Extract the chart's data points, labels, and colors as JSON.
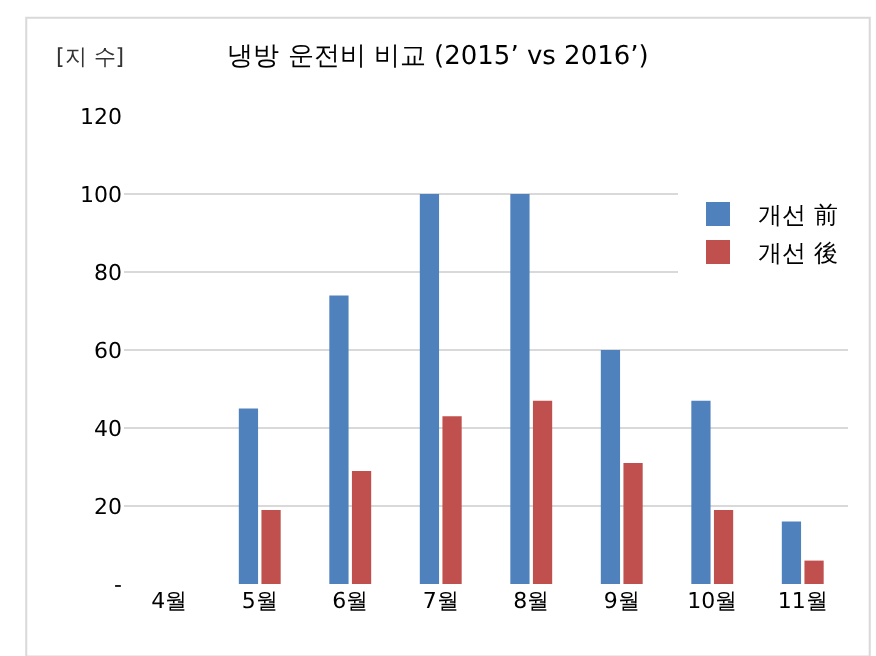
{
  "chart_data": {
    "type": "bar",
    "title": "냉방 운전비 비교 (2015’ vs 2016’)",
    "ylabel": "[지 수]",
    "categories": [
      "4월",
      "5월",
      "6월",
      "7월",
      "8월",
      "9월",
      "10월",
      "11월"
    ],
    "series": [
      {
        "name": "개선 前",
        "color": "#4f81bd",
        "values": [
          null,
          45,
          74,
          100,
          100,
          60,
          47,
          16
        ]
      },
      {
        "name": "개선 後",
        "color": "#c0504d",
        "values": [
          null,
          19,
          29,
          43,
          47,
          31,
          19,
          6
        ]
      }
    ],
    "ylim": [
      0,
      120
    ],
    "yticks": [
      {
        "value": 0,
        "label": "-"
      },
      20,
      40,
      60,
      80,
      100,
      120
    ],
    "grid": "y",
    "legend": "right"
  }
}
